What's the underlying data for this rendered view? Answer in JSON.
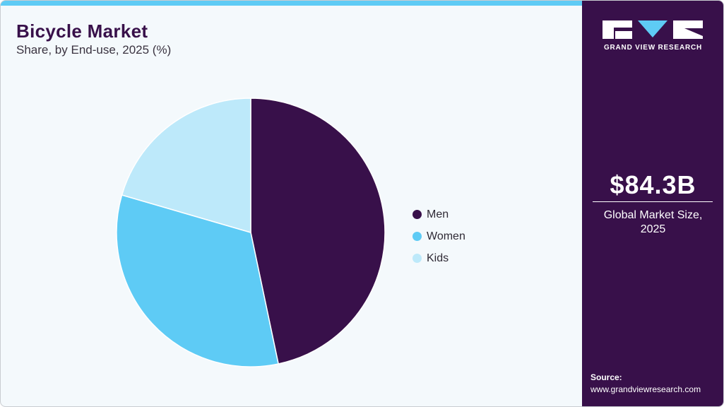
{
  "header": {
    "title": "Bicycle Market",
    "subtitle": "Share, by End-use, 2025 (%)"
  },
  "colors": {
    "brand_purple": "#38104a",
    "accent_blue": "#5ecbf5",
    "light_blue": "#bde9fa",
    "background": "#f4f9fc"
  },
  "legend": [
    {
      "label": "Men",
      "color": "#38104a"
    },
    {
      "label": "Women",
      "color": "#5ecbf5"
    },
    {
      "label": "Kids",
      "color": "#bde9fa"
    }
  ],
  "sidebar": {
    "logo_text": "GRAND VIEW RESEARCH",
    "market_size": "$84.3B",
    "market_caption_line1": "Global Market Size,",
    "market_caption_line2": "2025",
    "source_label": "Source:",
    "source_url": "www.grandviewresearch.com"
  },
  "chart_data": {
    "type": "pie",
    "title": "Bicycle Market",
    "subtitle": "Share, by End-use, 2025 (%)",
    "categories": [
      "Men",
      "Women",
      "Kids"
    ],
    "values": [
      46.7,
      32.8,
      20.5
    ],
    "colors": [
      "#38104a",
      "#5ecbf5",
      "#bde9fa"
    ],
    "start_angle_deg": 0,
    "direction": "clockwise",
    "legend_position": "right"
  }
}
